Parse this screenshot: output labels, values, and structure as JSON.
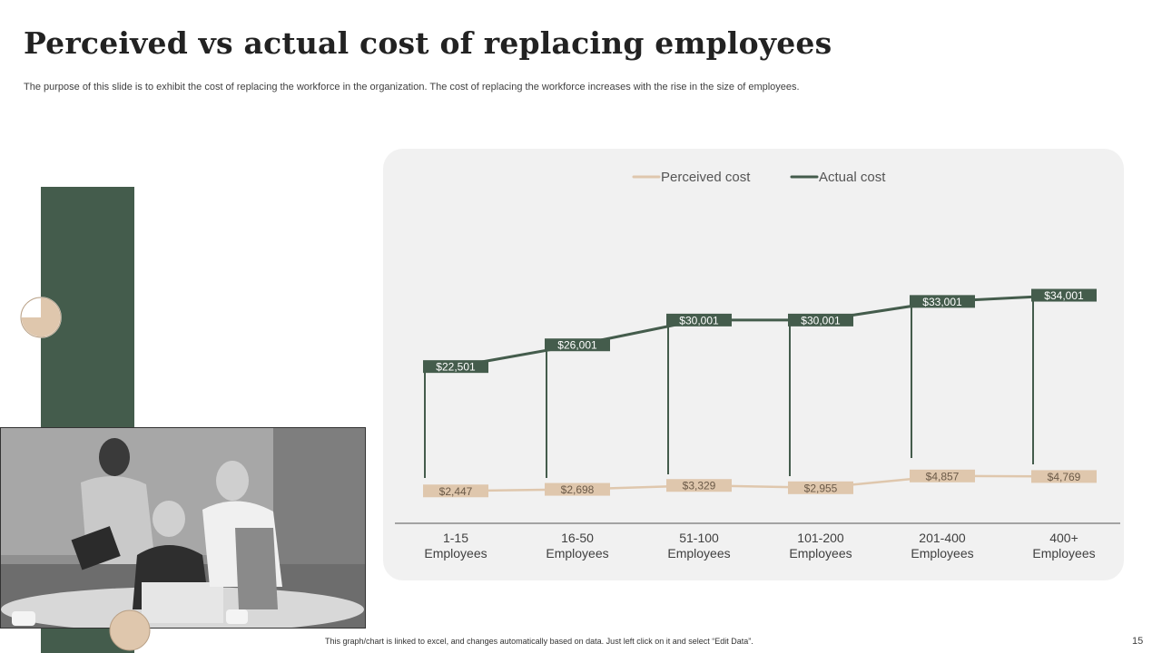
{
  "slide": {
    "title": "Perceived vs actual cost of replacing employees",
    "subtitle": "The purpose of this slide is to exhibit the cost of replacing the workforce in the organization. The cost of replacing the workforce increases with the rise in the size of employees.",
    "footer_note": "This graph/chart is linked to excel, and changes automatically based on data. Just left click on it and select “Edit Data”.",
    "page_number": "15"
  },
  "colors": {
    "actual": "#445c4c",
    "perceived": "#dfc7ad",
    "accent_green": "#445c4c",
    "accent_tan": "#dfc7ad",
    "panel": "#f1f1f1"
  },
  "chart_data": {
    "type": "line",
    "categories": [
      "1-15 Employees",
      "16-50 Employees",
      "51-100 Employees",
      "101-200 Employees",
      "201-400 Employees",
      "400+ Employees"
    ],
    "category_lines": [
      [
        "1-15",
        "Employees"
      ],
      [
        "16-50",
        "Employees"
      ],
      [
        "51-100",
        "Employees"
      ],
      [
        "101-200",
        "Employees"
      ],
      [
        "201-400",
        "Employees"
      ],
      [
        "400+",
        "Employees"
      ]
    ],
    "series": [
      {
        "name": "Perceived cost",
        "values": [
          2447,
          2698,
          3329,
          2955,
          4857,
          4769
        ],
        "labels": [
          "$2,447",
          "$2,698",
          "$3,329",
          "$2,955",
          "$4,857",
          "$4,769"
        ]
      },
      {
        "name": "Actual cost",
        "values": [
          22501,
          26001,
          30001,
          30001,
          33001,
          34001
        ],
        "labels": [
          "$22,501",
          "$26,001",
          "$30,001",
          "$30,001",
          "$33,001",
          "$34,001"
        ]
      }
    ],
    "ylim": [
      0,
      43000
    ],
    "grid": false,
    "legend_position": "top-center",
    "drop_lines": true
  }
}
